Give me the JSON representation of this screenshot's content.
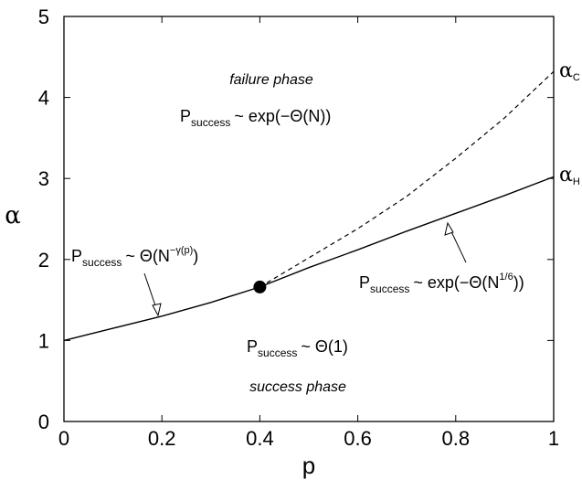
{
  "chart_data": {
    "type": "line",
    "xlabel": "p",
    "ylabel": "α",
    "xlim": [
      0,
      1
    ],
    "ylim": [
      0,
      5
    ],
    "x_ticks": [
      "0",
      "0.2",
      "0.4",
      "0.6",
      "0.8",
      "1"
    ],
    "y_ticks": [
      "0",
      "1",
      "2",
      "3",
      "4",
      "5"
    ],
    "grid": false,
    "series": [
      {
        "name": "α_H",
        "style": "solid",
        "x": [
          0,
          0.1,
          0.2,
          0.3,
          0.4,
          0.5,
          0.6,
          0.7,
          0.8,
          0.9,
          1.0
        ],
        "y": [
          1.0,
          1.15,
          1.3,
          1.47,
          1.66,
          1.9,
          2.12,
          2.35,
          2.57,
          2.79,
          3.02
        ]
      },
      {
        "name": "α_C",
        "style": "dashed",
        "x": [
          0.4,
          0.5,
          0.6,
          0.7,
          0.8,
          0.9,
          1.0
        ],
        "y": [
          1.66,
          2.02,
          2.38,
          2.78,
          3.25,
          3.75,
          4.32
        ]
      }
    ],
    "marker_point": {
      "x": 0.4,
      "y": 1.66
    },
    "curve_labels": {
      "alpha_c": {
        "main": "α",
        "sub": "C"
      },
      "alpha_h": {
        "main": "α",
        "sub": "H"
      }
    },
    "annotations": {
      "failure_phase": "failure phase",
      "success_phase": "success phase",
      "failure_expr": {
        "p": "P",
        "sub": "success",
        "rest": "~ exp(−Θ(N))"
      },
      "success_expr": {
        "p": "P",
        "sub": "success",
        "rest": "~ Θ(1)"
      },
      "left_expr": {
        "p": "P",
        "sub": "success",
        "pre": "~ Θ(N",
        "sup": "−γ(p)",
        "post": ")"
      },
      "right_expr": {
        "p": "P",
        "sub": "success",
        "pre": "~ exp(−Θ(N",
        "sup": "1/6",
        "post": "))"
      }
    }
  }
}
